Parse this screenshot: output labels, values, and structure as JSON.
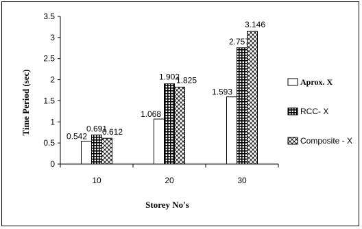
{
  "chart_data": {
    "type": "bar",
    "title": "",
    "xlabel": "Storey No's",
    "ylabel": "Time Period (sec)",
    "categories": [
      "10",
      "20",
      "30"
    ],
    "ylim": [
      0,
      3.5
    ],
    "yticks": [
      "0",
      "0.5",
      "1",
      "1.5",
      "2",
      "2.5",
      "3",
      "3.5"
    ],
    "grid": false,
    "legend_position": "right",
    "series": [
      {
        "name": "Aprox. X",
        "values": [
          0.542,
          1.068,
          1.593
        ],
        "data_labels": [
          "0.542",
          "1.068",
          "1.593"
        ],
        "pattern": "plain"
      },
      {
        "name": "RCC- X",
        "values": [
          0.691,
          1.902,
          2.757
        ],
        "data_labels": [
          "0.691",
          "1.902",
          "2.757"
        ],
        "pattern": "grid"
      },
      {
        "name": "Composite - X",
        "values": [
          0.612,
          1.825,
          3.146
        ],
        "data_labels": [
          "0.612",
          "1.825",
          "3.146"
        ],
        "pattern": "cross"
      }
    ]
  }
}
